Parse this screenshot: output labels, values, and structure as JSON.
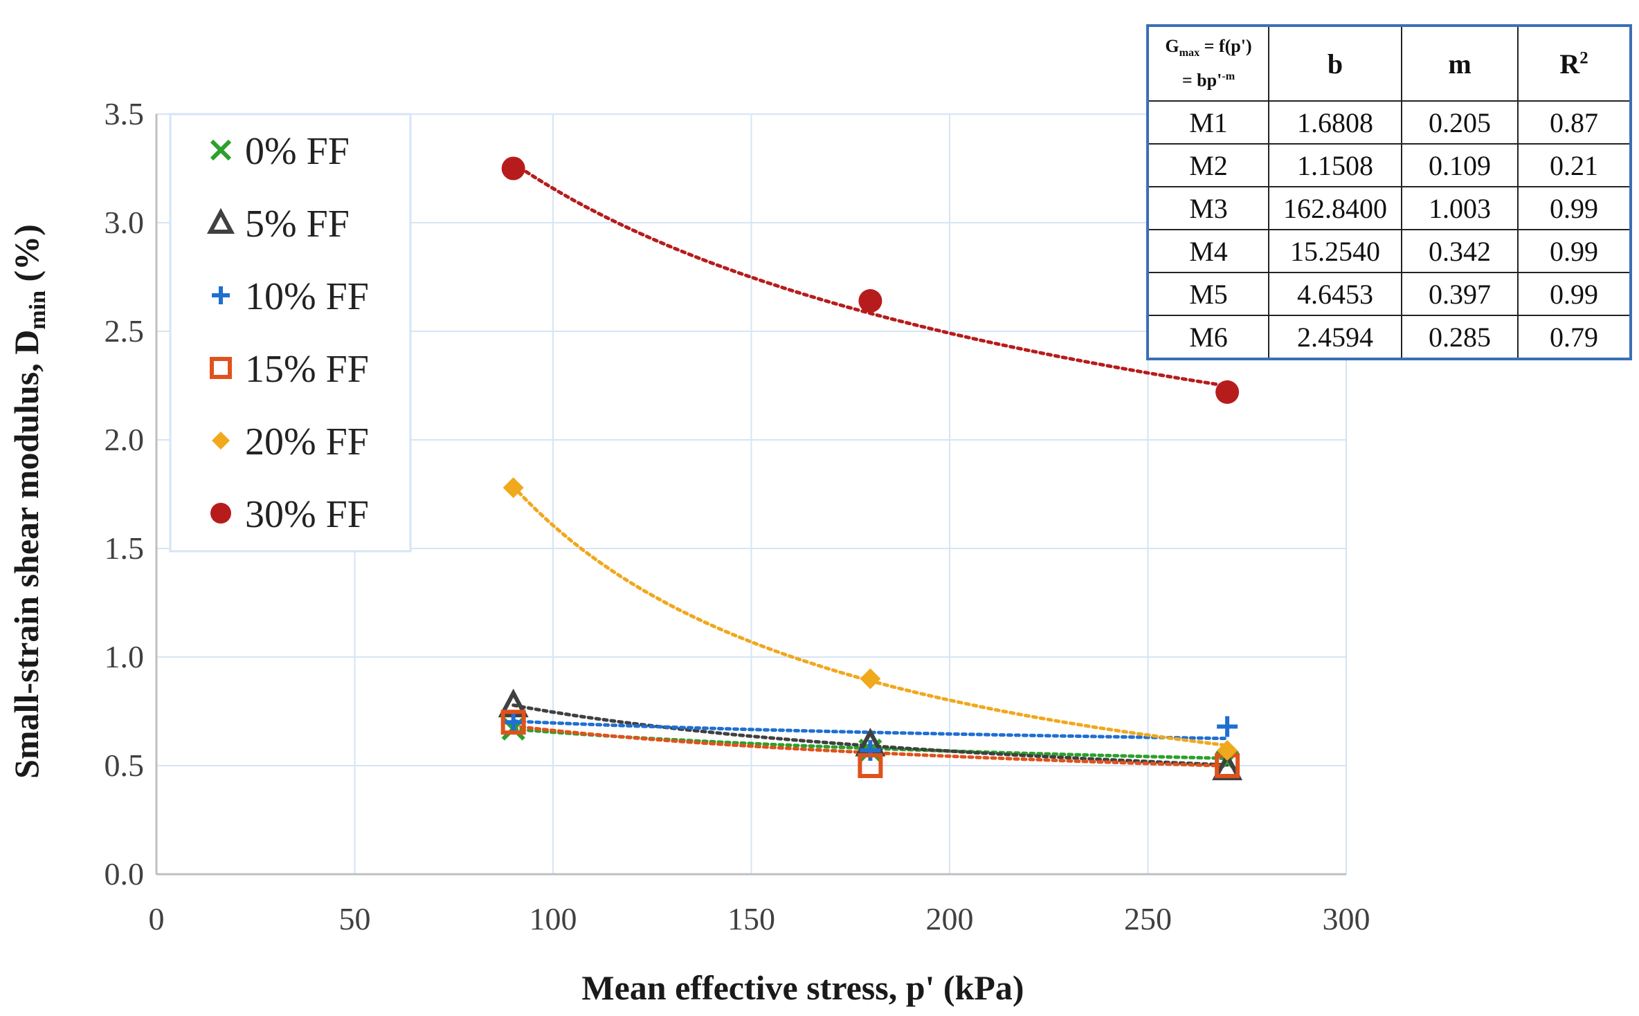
{
  "chart_data": {
    "type": "scatter",
    "xlabel": "Mean effective stress, p' (kPa)",
    "ylabel_main": "Small-strain shear modulus, D",
    "ylabel_sub": "min",
    "ylabel_unit": " (%)",
    "xlim": [
      0,
      300
    ],
    "ylim": [
      0,
      3.5
    ],
    "x_ticks": [
      0,
      50,
      100,
      150,
      200,
      250,
      300
    ],
    "y_ticks": [
      0.0,
      0.5,
      1.0,
      1.5,
      2.0,
      2.5,
      3.0,
      3.5
    ],
    "y_tick_labels": [
      "0.0",
      "0.5",
      "1.0",
      "1.5",
      "2.0",
      "2.5",
      "3.0",
      "3.5"
    ],
    "x_tick_labels": [
      "0",
      "50",
      "100",
      "150",
      "200",
      "250",
      "300"
    ],
    "grid": true,
    "legend_position": "top-left",
    "series": [
      {
        "name": "0% FF",
        "marker": "x",
        "color": "#2ca02c",
        "x": [
          90,
          180,
          270
        ],
        "values": [
          0.67,
          0.57,
          0.52
        ],
        "fit_b": 1.6808,
        "fit_m": 0.205
      },
      {
        "name": "5% FF",
        "marker": "triangle",
        "color": "#404040",
        "x": [
          90,
          180,
          270
        ],
        "values": [
          0.78,
          0.6,
          0.49
        ],
        "fit_b": 4.6453,
        "fit_m": 0.397
      },
      {
        "name": "10% FF",
        "marker": "plus",
        "color": "#1f6fd1",
        "x": [
          90,
          180,
          270
        ],
        "values": [
          0.7,
          0.57,
          0.68
        ],
        "fit_b": 1.1508,
        "fit_m": 0.109
      },
      {
        "name": "15% FF",
        "marker": "square",
        "color": "#e0521c",
        "x": [
          90,
          180,
          270
        ],
        "values": [
          0.7,
          0.5,
          0.5
        ],
        "fit_b": 2.4594,
        "fit_m": 0.285
      },
      {
        "name": "20% FF",
        "marker": "diamond",
        "color": "#f0a81c",
        "x": [
          90,
          180,
          270
        ],
        "values": [
          1.78,
          0.9,
          0.57
        ],
        "fit_b": 162.84,
        "fit_m": 1.003
      },
      {
        "name": "30% FF",
        "marker": "circle",
        "color": "#b71c1c",
        "x": [
          90,
          180,
          270
        ],
        "values": [
          3.25,
          2.64,
          2.22
        ],
        "fit_b": 15.254,
        "fit_m": 0.342
      }
    ]
  },
  "fit_table": {
    "header": {
      "eqn_line1_main": "G",
      "eqn_line1_sub": "max",
      "eqn_line1_rest": " = f(p')",
      "eqn_line2_main": "= bp'",
      "eqn_line2_sup": "-m",
      "b": "b",
      "m": "m",
      "r2_main": "R",
      "r2_sup": "2"
    },
    "rows": [
      {
        "model": "M1",
        "b": "1.6808",
        "m": "0.205",
        "r2": "0.87"
      },
      {
        "model": "M2",
        "b": "1.1508",
        "m": "0.109",
        "r2": "0.21"
      },
      {
        "model": "M3",
        "b": "162.8400",
        "m": "1.003",
        "r2": "0.99"
      },
      {
        "model": "M4",
        "b": "15.2540",
        "m": "0.342",
        "r2": "0.99"
      },
      {
        "model": "M5",
        "b": "4.6453",
        "m": "0.397",
        "r2": "0.99"
      },
      {
        "model": "M6",
        "b": "2.4594",
        "m": "0.285",
        "r2": "0.79"
      }
    ]
  }
}
